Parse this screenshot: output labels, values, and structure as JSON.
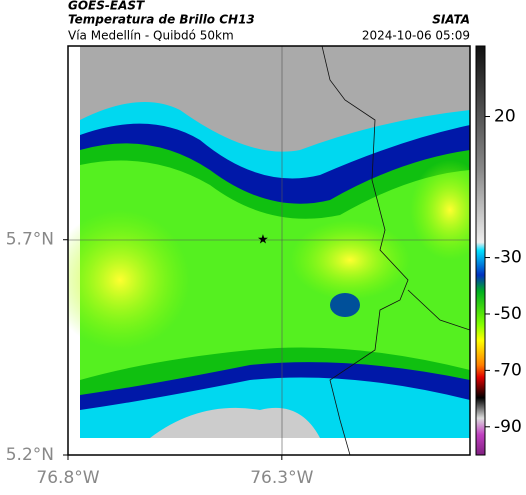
{
  "header": {
    "source": "GOES-EAST",
    "title": "Temperatura de Brillo CH13",
    "subtitle": "Vía Medellín - Quibdó 50km",
    "org": "SIATA",
    "datetime": "2024-10-06 05:09"
  },
  "map": {
    "xlim": [
      -76.8,
      -75.86
    ],
    "ylim": [
      5.2,
      6.15
    ],
    "xticks": [
      {
        "value": -76.8,
        "label": "76.8°W"
      },
      {
        "value": -76.3,
        "label": "76.3°W"
      }
    ],
    "yticks": [
      {
        "value": 5.7,
        "label": "5.7°N"
      },
      {
        "value": 5.2,
        "label": "5.2°N"
      }
    ]
  },
  "colorbar": {
    "clim": [
      -100,
      45
    ],
    "ticks": [
      20,
      -30,
      -50,
      -70,
      -90
    ]
  }
}
